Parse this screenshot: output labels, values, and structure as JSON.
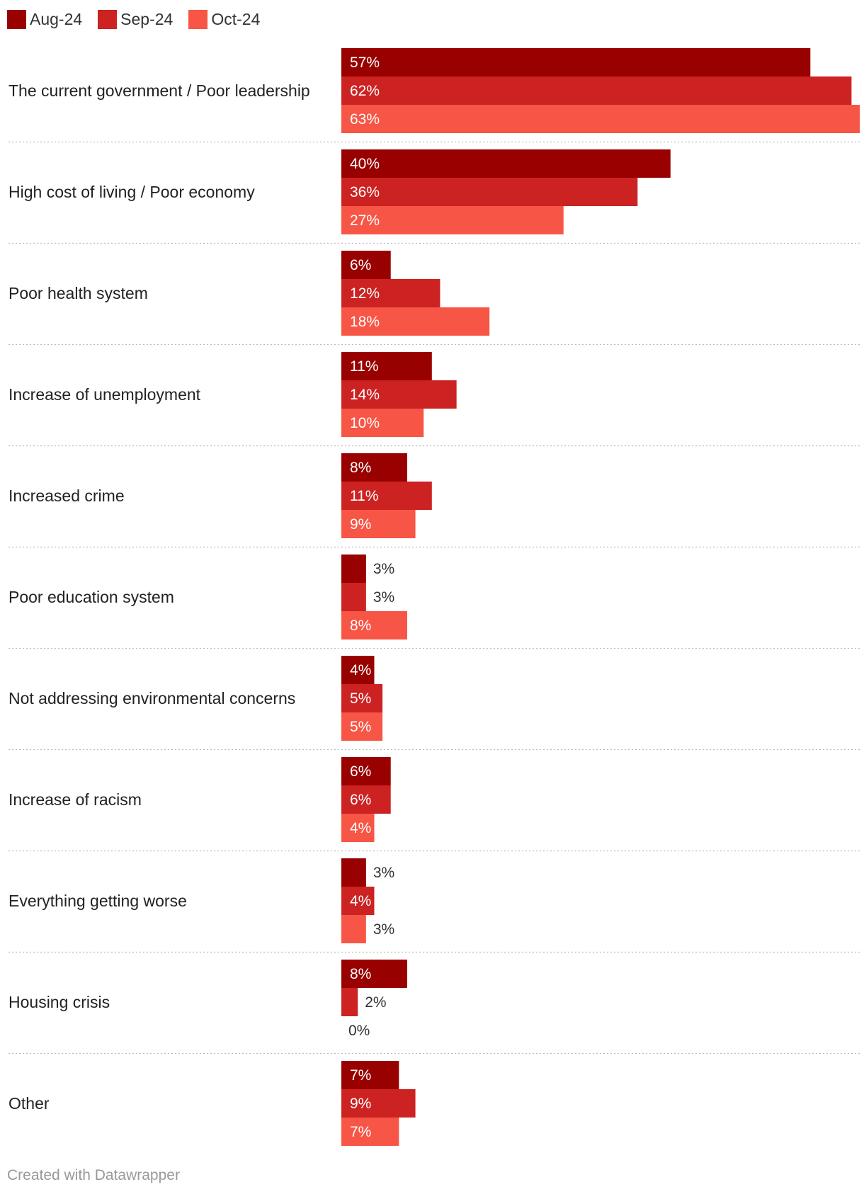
{
  "chart_data": {
    "type": "bar",
    "orientation": "horizontal",
    "grouped": true,
    "categories": [
      "The current government / Poor leadership",
      "High cost of living / Poor economy",
      "Poor health system",
      "Increase of unemployment",
      "Increased crime",
      "Poor education system",
      "Not addressing environmental concerns",
      "Increase of racism",
      "Everything getting worse",
      "Housing crisis",
      "Other"
    ],
    "series": [
      {
        "name": "Aug-24",
        "color": "#990000",
        "values": [
          57,
          40,
          6,
          11,
          8,
          3,
          4,
          6,
          3,
          8,
          7
        ]
      },
      {
        "name": "Sep-24",
        "color": "#cc2222",
        "values": [
          62,
          36,
          12,
          14,
          11,
          3,
          5,
          6,
          4,
          2,
          9
        ]
      },
      {
        "name": "Oct-24",
        "color": "#f75545",
        "values": [
          63,
          27,
          18,
          10,
          9,
          8,
          5,
          4,
          3,
          0,
          7
        ]
      }
    ],
    "value_suffix": "%",
    "xlim": [
      0,
      63
    ],
    "legend_position": "top-left"
  },
  "footer": {
    "credit": "Created with Datawrapper"
  }
}
